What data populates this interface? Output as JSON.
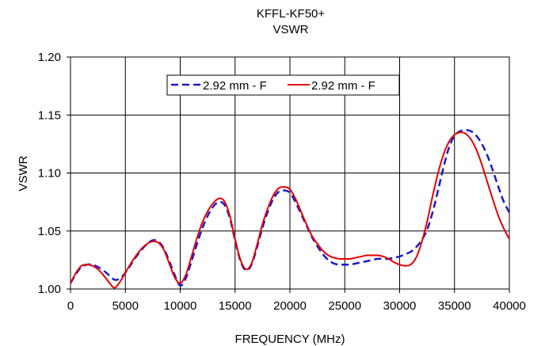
{
  "chart_data": {
    "type": "line",
    "title": "KFFL-KF50+",
    "subtitle": "VSWR",
    "xlabel": "FREQUENCY (MHz)",
    "ylabel": "VSWR",
    "xlim": [
      0,
      40000
    ],
    "ylim": [
      1.0,
      1.2
    ],
    "xticks": [
      "0",
      "5000",
      "10000",
      "15000",
      "20000",
      "25000",
      "30000",
      "35000",
      "40000"
    ],
    "yticks": [
      "1.00",
      "1.05",
      "1.10",
      "1.15",
      "1.20"
    ],
    "grid": true,
    "legend_position": "top-center",
    "series": [
      {
        "name": "2.92 mm - F",
        "color": "#1a1acc",
        "dash": "dashed",
        "x": [
          0,
          500,
          1000,
          1500,
          2000,
          2500,
          3000,
          3500,
          4000,
          4500,
          5000,
          5500,
          6000,
          6500,
          7000,
          7500,
          8000,
          8500,
          9000,
          9500,
          10000,
          10500,
          11000,
          11500,
          12000,
          12500,
          13000,
          13500,
          14000,
          14500,
          15000,
          15500,
          16000,
          16500,
          17000,
          17500,
          18000,
          18500,
          19000,
          19500,
          20000,
          20500,
          21000,
          21500,
          22000,
          22500,
          23000,
          23500,
          24000,
          24500,
          25000,
          25500,
          26000,
          26500,
          27000,
          27500,
          28000,
          28500,
          29000,
          29500,
          30000,
          30500,
          31000,
          31500,
          32000,
          32500,
          33000,
          33500,
          34000,
          34500,
          35000,
          35500,
          36000,
          36500,
          37000,
          37500,
          38000,
          38500,
          39000,
          39500,
          40000
        ],
        "y": [
          1.005,
          1.013,
          1.019,
          1.021,
          1.021,
          1.019,
          1.016,
          1.012,
          1.008,
          1.009,
          1.014,
          1.021,
          1.028,
          1.034,
          1.039,
          1.042,
          1.041,
          1.035,
          1.024,
          1.012,
          1.003,
          1.009,
          1.023,
          1.038,
          1.052,
          1.063,
          1.071,
          1.075,
          1.073,
          1.062,
          1.042,
          1.024,
          1.016,
          1.021,
          1.036,
          1.053,
          1.067,
          1.078,
          1.084,
          1.085,
          1.083,
          1.075,
          1.065,
          1.055,
          1.045,
          1.037,
          1.03,
          1.025,
          1.022,
          1.021,
          1.021,
          1.021,
          1.022,
          1.023,
          1.024,
          1.025,
          1.026,
          1.026,
          1.026,
          1.027,
          1.028,
          1.03,
          1.032,
          1.036,
          1.042,
          1.051,
          1.066,
          1.085,
          1.105,
          1.122,
          1.132,
          1.136,
          1.137,
          1.136,
          1.132,
          1.125,
          1.115,
          1.102,
          1.088,
          1.075,
          1.066
        ]
      },
      {
        "name": "2.92 mm - F",
        "color": "#e60000",
        "dash": "solid",
        "x": [
          0,
          500,
          1000,
          1500,
          2000,
          2500,
          3000,
          3500,
          4000,
          4500,
          5000,
          5500,
          6000,
          6500,
          7000,
          7500,
          8000,
          8500,
          9000,
          9500,
          10000,
          10500,
          11000,
          11500,
          12000,
          12500,
          13000,
          13500,
          14000,
          14500,
          15000,
          15500,
          16000,
          16500,
          17000,
          17500,
          18000,
          18500,
          19000,
          19500,
          20000,
          20500,
          21000,
          21500,
          22000,
          22500,
          23000,
          23500,
          24000,
          24500,
          25000,
          25500,
          26000,
          26500,
          27000,
          27500,
          28000,
          28500,
          29000,
          29500,
          30000,
          30500,
          31000,
          31500,
          32000,
          32500,
          33000,
          33500,
          34000,
          34500,
          35000,
          35500,
          36000,
          36500,
          37000,
          37500,
          38000,
          38500,
          39000,
          39500,
          40000
        ],
        "y": [
          1.005,
          1.014,
          1.02,
          1.021,
          1.02,
          1.017,
          1.012,
          1.006,
          1.001,
          1.006,
          1.014,
          1.022,
          1.029,
          1.035,
          1.039,
          1.041,
          1.04,
          1.034,
          1.022,
          1.01,
          1.005,
          1.012,
          1.027,
          1.043,
          1.057,
          1.067,
          1.074,
          1.078,
          1.076,
          1.064,
          1.043,
          1.025,
          1.017,
          1.022,
          1.038,
          1.056,
          1.07,
          1.081,
          1.087,
          1.088,
          1.086,
          1.078,
          1.067,
          1.056,
          1.046,
          1.039,
          1.033,
          1.029,
          1.027,
          1.026,
          1.026,
          1.026,
          1.027,
          1.028,
          1.029,
          1.029,
          1.029,
          1.028,
          1.026,
          1.023,
          1.021,
          1.02,
          1.021,
          1.027,
          1.04,
          1.058,
          1.08,
          1.1,
          1.116,
          1.127,
          1.133,
          1.135,
          1.134,
          1.129,
          1.12,
          1.107,
          1.092,
          1.077,
          1.063,
          1.052,
          1.043
        ]
      }
    ]
  }
}
